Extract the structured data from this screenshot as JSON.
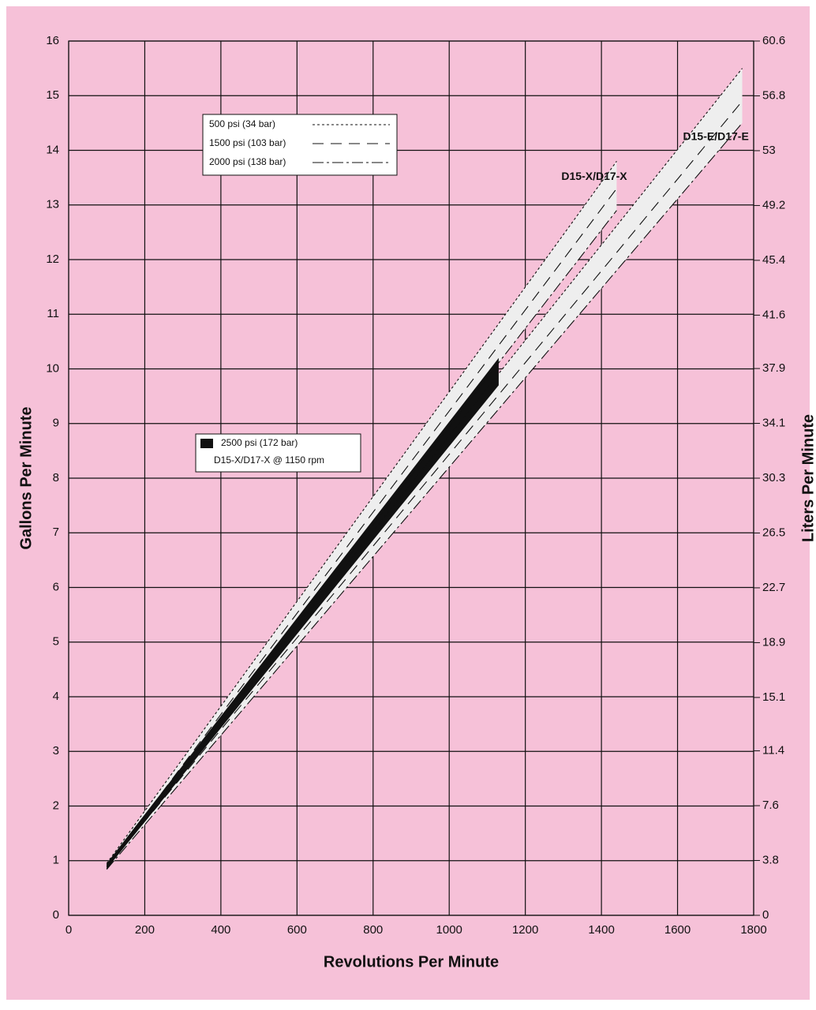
{
  "chart_data": {
    "type": "line",
    "x_label": "Revolutions Per Minute",
    "y_label": "Gallons Per Minute",
    "y2_label": "Liters Per Minute",
    "xlim": [
      0,
      1800
    ],
    "xticks": [
      0,
      200,
      400,
      600,
      800,
      1000,
      1200,
      1400,
      1600,
      1800
    ],
    "ylim": [
      0,
      16
    ],
    "yticks": [
      0,
      1,
      2,
      3,
      4,
      5,
      6,
      7,
      8,
      9,
      10,
      11,
      12,
      13,
      14,
      15,
      16
    ],
    "y2lim": [
      0,
      60.6
    ],
    "y2ticks": [
      0,
      3.8,
      7.6,
      11.4,
      15.1,
      18.9,
      22.7,
      26.5,
      30.3,
      34.1,
      37.9,
      41.6,
      45.4,
      49.2,
      53,
      56.8,
      60.6
    ],
    "grid": true,
    "background": "#f6c1d8",
    "range_color": "#eeeeee",
    "line_styles": [
      {
        "name": "500 psi (34 bar)",
        "dash": "3 3"
      },
      {
        "name": "1500 psi (103 bar)",
        "dash": "14 9"
      },
      {
        "name": "2000 psi (138 bar)",
        "dash": "14 4 3 4"
      }
    ],
    "models": [
      {
        "label": "D15-X/D17-X",
        "x": [
          100,
          1440
        ],
        "series": [
          [
            0.95,
            13.8
          ],
          [
            0.9,
            13.3
          ],
          [
            0.85,
            12.9
          ]
        ]
      },
      {
        "label": "D15-E/D17-E",
        "x": [
          100,
          1770
        ],
        "series": [
          [
            0.92,
            15.5
          ],
          [
            0.88,
            14.9
          ],
          [
            0.84,
            14.5
          ]
        ]
      }
    ],
    "band": {
      "name": "2500 psi (172 bar)",
      "note": "D15-X/D17-X @ 1150 rpm",
      "color": "#111111",
      "x": [
        100,
        1130
      ],
      "upper": [
        0.95,
        10.2
      ],
      "lower": [
        0.85,
        9.7
      ]
    }
  }
}
